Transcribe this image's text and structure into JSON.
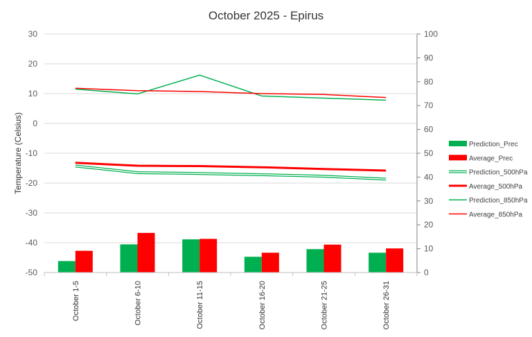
{
  "chart_data": {
    "type": "bar+line",
    "title": "October 2025 - Epirus",
    "ylabel_left": "Temperature (Celsius)",
    "ylabel_right": "",
    "xlabel": "",
    "categories": [
      "October 1-5",
      "October 6-10",
      "October 11-15",
      "October 16-20",
      "October 21-25",
      "October 26-31"
    ],
    "left_axis": {
      "range": [
        -50,
        30
      ],
      "ticks": [
        "30",
        "20",
        "10",
        "0",
        "-10",
        "-20",
        "-30",
        "-40",
        "-50"
      ],
      "tick_values": [
        30,
        20,
        10,
        0,
        -10,
        -20,
        -30,
        -40,
        -50
      ]
    },
    "right_axis": {
      "range": [
        0,
        100
      ],
      "ticks": [
        "100",
        "90",
        "80",
        "70",
        "60",
        "50",
        "40",
        "30",
        "20",
        "10",
        "0"
      ],
      "tick_values": [
        100,
        90,
        80,
        70,
        60,
        50,
        40,
        30,
        20,
        10,
        0
      ]
    },
    "grid": "horizontal",
    "legend_position": "right",
    "bar_series": [
      {
        "name": "Prediction_Prec",
        "axis": "right",
        "color": "#00b050",
        "values": [
          4.8,
          11.8,
          13.9,
          6.6,
          9.8,
          8.3
        ]
      },
      {
        "name": "Average_Prec",
        "axis": "right",
        "color": "#ff0000",
        "values": [
          9.1,
          16.6,
          14.1,
          8.3,
          11.7,
          10.1
        ]
      }
    ],
    "line_series": [
      {
        "name": "Prediction_500hPa",
        "axis": "left",
        "color": "#00b050",
        "style": "double",
        "values": [
          -14.3,
          -16.5,
          -16.8,
          -17.2,
          -17.7,
          -18.7
        ]
      },
      {
        "name": "Average_500hPa",
        "axis": "left",
        "color": "#ff0000",
        "style": "thick",
        "values": [
          -13.2,
          -14.2,
          -14.3,
          -14.7,
          -15.3,
          -15.8
        ]
      },
      {
        "name": "Prediction_850hPa",
        "axis": "left",
        "color": "#00b050",
        "style": "thin",
        "values": [
          11.5,
          9.9,
          16.2,
          9.2,
          8.5,
          7.8
        ]
      },
      {
        "name": "Average_850hPa",
        "axis": "left",
        "color": "#ff0000",
        "style": "thin",
        "values": [
          11.8,
          11.0,
          10.7,
          10.0,
          9.7,
          8.7
        ]
      }
    ]
  }
}
